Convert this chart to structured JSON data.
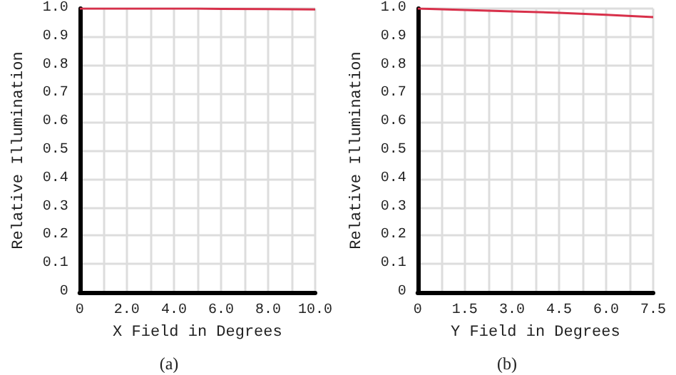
{
  "chart_data": [
    {
      "type": "line",
      "xlabel": "X Field in Degrees",
      "ylabel": "Relative Illumination",
      "annotations": [
        "(a)"
      ],
      "x": [
        0,
        2,
        4,
        5,
        6,
        8,
        10
      ],
      "series": [
        {
          "color": "#d8304a",
          "values": [
            1.0,
            1.0,
            1.0,
            1.0,
            0.999,
            0.998,
            0.997
          ]
        }
      ],
      "xlim": [
        0,
        10
      ],
      "xticks": [
        0,
        {
          "value": 1,
          "label": null
        },
        {
          "value": 2,
          "label": "2.0"
        },
        {
          "value": 3,
          "label": null
        },
        {
          "value": 4,
          "label": "4.0"
        },
        {
          "value": 5,
          "label": null
        },
        {
          "value": 6,
          "label": "6.0"
        },
        {
          "value": 7,
          "label": null
        },
        {
          "value": 8,
          "label": "8.0"
        },
        {
          "value": 9,
          "label": null
        },
        {
          "value": 10,
          "label": "10.0"
        }
      ],
      "ylim": [
        0,
        1
      ],
      "yticks": [
        0,
        0.1,
        0.2,
        0.3,
        0.4,
        0.5,
        0.6,
        0.7,
        0.8,
        0.9,
        {
          "value": 1,
          "label": "1.0"
        }
      ],
      "grid": true,
      "marker": "none",
      "line_style": "solid"
    },
    {
      "type": "line",
      "xlabel": "Y Field in Degrees",
      "ylabel": "Relative Illumination",
      "annotations": [
        "(b)"
      ],
      "x": [
        0,
        1.5,
        3,
        4.5,
        6,
        7.5
      ],
      "series": [
        {
          "color": "#d8304a",
          "values": [
            1.0,
            0.995,
            0.99,
            0.985,
            0.978,
            0.97
          ]
        }
      ],
      "xlim": [
        0,
        7.5
      ],
      "xticks": [
        0,
        {
          "value": 0.75,
          "label": null
        },
        {
          "value": 1.5,
          "label": "1.5"
        },
        {
          "value": 2.25,
          "label": null
        },
        {
          "value": 3,
          "label": "3.0"
        },
        {
          "value": 3.75,
          "label": null
        },
        {
          "value": 4.5,
          "label": "4.5"
        },
        {
          "value": 5.25,
          "label": null
        },
        {
          "value": 6,
          "label": "6.0"
        },
        {
          "value": 6.75,
          "label": null
        },
        {
          "value": 7.5,
          "label": "7.5"
        }
      ],
      "ylim": [
        0,
        1
      ],
      "yticks": [
        0,
        0.1,
        0.2,
        0.3,
        0.4,
        0.5,
        0.6,
        0.7,
        0.8,
        0.9,
        {
          "value": 1,
          "label": "1.0"
        }
      ],
      "grid": true,
      "marker": "none",
      "line_style": "solid"
    }
  ]
}
